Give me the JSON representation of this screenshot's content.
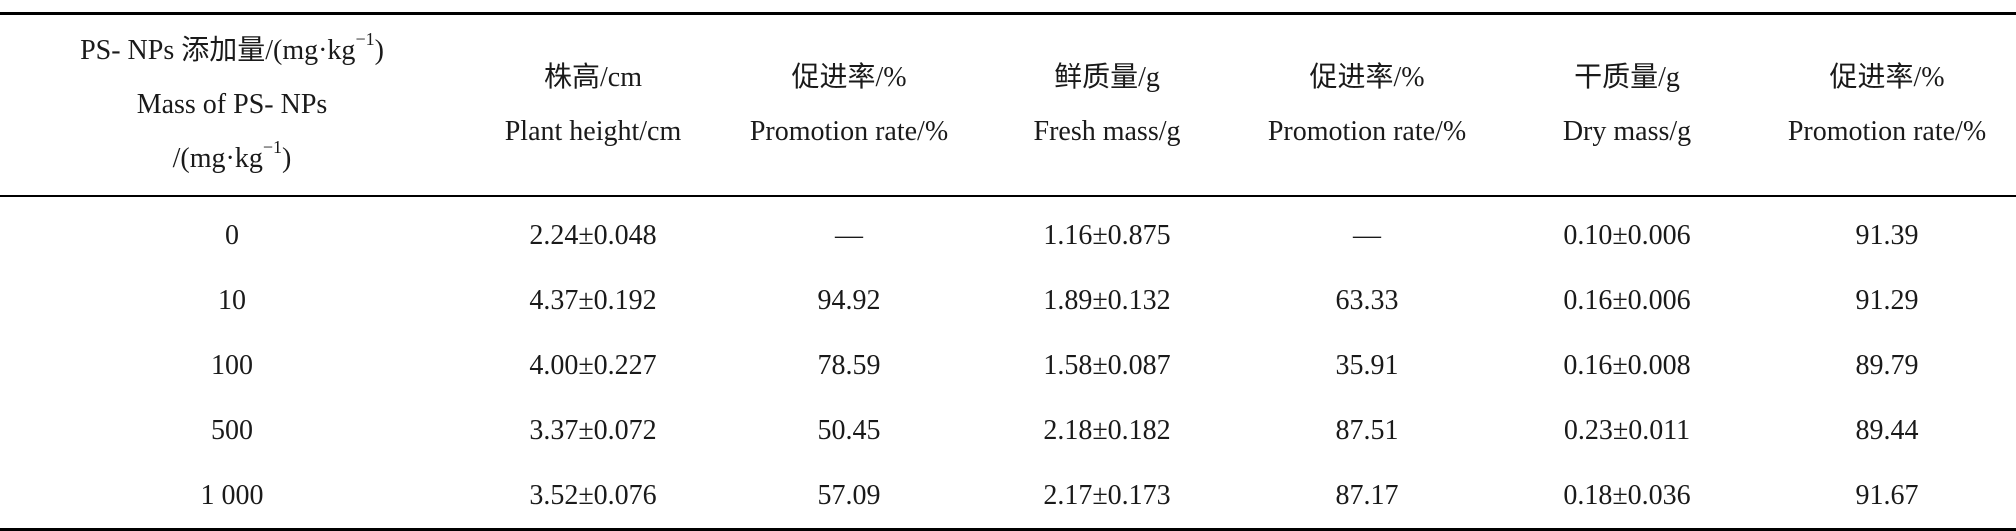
{
  "table": {
    "headers": [
      {
        "lines": [
          "PS-  NPs 添加量/(mg·kg",
          "Mass of PS-  NPs",
          "/(mg·kg"
        ],
        "sup": "−1"
      },
      {
        "lines": [
          "株高/cm",
          "Plant height/cm"
        ]
      },
      {
        "lines": [
          "促进率/%",
          "Promotion rate/%"
        ]
      },
      {
        "lines": [
          "鲜质量/g",
          "Fresh mass/g"
        ]
      },
      {
        "lines": [
          "促进率/%",
          "Promotion rate/%"
        ]
      },
      {
        "lines": [
          "干质量/g",
          "Dry mass/g"
        ]
      },
      {
        "lines": [
          "促进率/%",
          "Promotion rate/%"
        ]
      }
    ],
    "rows": [
      [
        "0",
        "2.24±0.048",
        "—",
        "1.16±0.875",
        "—",
        "0.10±0.006",
        "91.39"
      ],
      [
        "10",
        "4.37±0.192",
        "94.92",
        "1.89±0.132",
        "63.33",
        "0.16±0.006",
        "91.29"
      ],
      [
        "100",
        "4.00±0.227",
        "78.59",
        "1.58±0.087",
        "35.91",
        "0.16±0.008",
        "89.79"
      ],
      [
        "500",
        "3.37±0.072",
        "50.45",
        "2.18±0.182",
        "87.51",
        "0.23±0.011",
        "89.44"
      ],
      [
        "1 000",
        "3.52±0.076",
        "57.09",
        "2.17±0.173",
        "87.17",
        "0.18±0.036",
        "91.67"
      ]
    ]
  }
}
